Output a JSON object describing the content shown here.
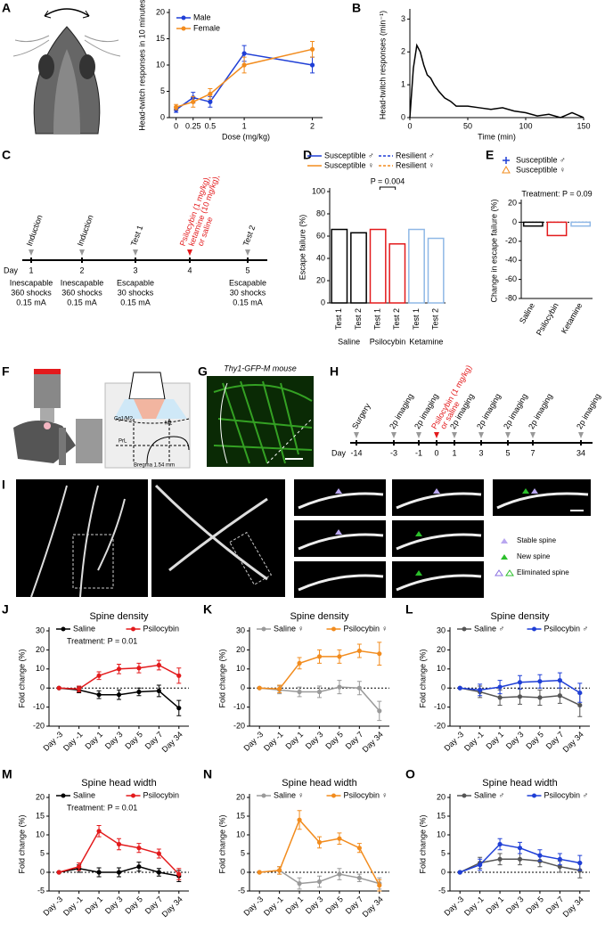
{
  "panel_labels": [
    "A",
    "B",
    "C",
    "D",
    "E",
    "F",
    "G",
    "H",
    "I",
    "J",
    "K",
    "L",
    "M",
    "N",
    "O"
  ],
  "chart_data": [
    {
      "type": "line",
      "ylabel": "Head-twitch responses in 10 minutes",
      "xlabel": "Dose (mg/kg)",
      "x": [
        0,
        0.25,
        0.5,
        1,
        2
      ],
      "xlim": [
        -0.1,
        2.15
      ],
      "xticks": [
        0,
        0.25,
        0.5,
        1,
        2
      ],
      "ylim": [
        0,
        20
      ],
      "yticks": [
        0,
        5,
        10,
        15,
        20
      ],
      "legend": "upper left",
      "series": [
        {
          "name": "Male",
          "color": "#1f3fd6",
          "values": [
            1.5,
            3.8,
            3,
            12.2,
            10
          ],
          "errors": [
            0.5,
            1,
            1,
            1.5,
            1.5
          ]
        },
        {
          "name": "Female",
          "color": "#f28c1e",
          "values": [
            2,
            3,
            4.5,
            10,
            13
          ],
          "errors": [
            0.5,
            1,
            1,
            1.5,
            1.5
          ]
        }
      ]
    },
    {
      "type": "line",
      "ylabel": "Head-twitch responses (min⁻¹)",
      "xlabel": "Time (min)",
      "x": [
        0,
        3,
        6,
        9,
        12,
        15,
        18,
        21,
        25,
        30,
        35,
        40,
        50,
        60,
        70,
        80,
        90,
        100,
        110,
        120,
        130,
        140,
        150
      ],
      "values": [
        0,
        1.5,
        2.2,
        2,
        1.6,
        1.3,
        1.2,
        1,
        0.8,
        0.6,
        0.5,
        0.35,
        0.35,
        0.3,
        0.25,
        0.3,
        0.2,
        0.15,
        0.05,
        0.1,
        0,
        0.15,
        0
      ],
      "color": "#000000",
      "markers": false,
      "xlim": [
        0,
        150
      ],
      "xticks": [
        0,
        50,
        100,
        150
      ],
      "ylim": [
        0,
        3.2
      ],
      "yticks": [
        0,
        1,
        2,
        3
      ]
    },
    {
      "type": "bar",
      "ylabel": "Escape failure (%)",
      "categories": [
        "Test 1",
        "Test 2",
        "Test 1",
        "Test 2",
        "Test 1",
        "Test 2"
      ],
      "groups": [
        "Saline",
        "Psilocybin",
        "Ketamine"
      ],
      "values": [
        66,
        63,
        66,
        53,
        66,
        58
      ],
      "colors": [
        "#000000",
        "#000000",
        "#e31a1c",
        "#e31a1c",
        "#8fb8e6",
        "#8fb8e6"
      ],
      "ylim": [
        0,
        100
      ],
      "yticks": [
        0,
        20,
        40,
        60,
        80,
        100
      ],
      "xlabel_rotate": -90,
      "annotation": "P = 0.004",
      "legend": "above",
      "legend_entries": [
        {
          "name": "Susceptible ♂",
          "color": "#1f3fd6",
          "marker": "line"
        },
        {
          "name": "Resilient ♂",
          "color": "#1f3fd6",
          "marker": "dash"
        },
        {
          "name": "Susceptible ♀",
          "color": "#f28c1e",
          "marker": "line"
        },
        {
          "name": "Resilient ♀",
          "color": "#f28c1e",
          "marker": "dash"
        }
      ]
    },
    {
      "type": "bar",
      "ylabel": "Change in escape failure (%)",
      "categories": [
        "Saline",
        "Psilocybin",
        "Ketamine"
      ],
      "values": [
        -4,
        -14,
        -4
      ],
      "colors": [
        "#000000",
        "#e31a1c",
        "#8fb8e6"
      ],
      "ylim": [
        -80,
        20
      ],
      "yticks": [
        -80,
        -60,
        -40,
        -20,
        0,
        20
      ],
      "xlabel_rotate": -60,
      "zero_line": true,
      "annotation": "Treatment: P = 0.09",
      "legend": "above-column",
      "legend_entries": [
        {
          "name": "Susceptible ♂",
          "color": "#1f3fd6",
          "marker": "plus"
        },
        {
          "name": "Susceptible ♀",
          "color": "#f28c1e",
          "marker": "triangle"
        }
      ]
    },
    {
      "type": "line",
      "title": "Spine density",
      "ylabel": "Fold change (%)",
      "categories": [
        "Day -3",
        "Day -1",
        "Day 1",
        "Day 3",
        "Day 5",
        "Day 7",
        "Day 34"
      ],
      "ylim": [
        -20,
        30
      ],
      "yticks": [
        -20,
        -10,
        0,
        10,
        20,
        30
      ],
      "zero_line": true,
      "legend": "top",
      "annotation": "Treatment: P = 0.01",
      "series": [
        {
          "name": "Saline",
          "color": "#000000",
          "values": [
            0,
            -1,
            -3.5,
            -3.5,
            -2,
            -1.5,
            -10.5
          ],
          "errors": [
            0,
            1.5,
            2,
            2.5,
            2,
            3,
            4
          ]
        },
        {
          "name": "Psilocybin",
          "color": "#e31a1c",
          "values": [
            0,
            -0.5,
            6.5,
            10,
            10.5,
            12,
            6.5
          ],
          "errors": [
            0,
            1.5,
            2,
            2.5,
            2.5,
            2.5,
            4
          ]
        }
      ]
    },
    {
      "type": "line",
      "title": "Spine density",
      "ylabel": "Fold change (%)",
      "categories": [
        "Day -3",
        "Day -1",
        "Day 1",
        "Day 3",
        "Day 5",
        "Day 7",
        "Day 34"
      ],
      "ylim": [
        -20,
        30
      ],
      "yticks": [
        -20,
        -10,
        0,
        10,
        20,
        30
      ],
      "zero_line": true,
      "legend": "top",
      "series": [
        {
          "name": "Saline ♀",
          "color": "#9a9a9a",
          "values": [
            0,
            -1,
            -2,
            -2,
            0.5,
            0,
            -12
          ],
          "errors": [
            0,
            2,
            2.5,
            3,
            3.5,
            3.5,
            5
          ]
        },
        {
          "name": "Psilocybin ♀",
          "color": "#f28c1e",
          "values": [
            0,
            -0.5,
            13,
            16.5,
            16.5,
            19.5,
            18
          ],
          "errors": [
            0,
            2,
            3,
            3.5,
            3.5,
            3.5,
            6
          ]
        }
      ]
    },
    {
      "type": "line",
      "title": "Spine density",
      "ylabel": "Fold change (%)",
      "categories": [
        "Day -3",
        "Day -1",
        "Day 1",
        "Day 3",
        "Day 5",
        "Day 7",
        "Day 34"
      ],
      "ylim": [
        -20,
        30
      ],
      "yticks": [
        -20,
        -10,
        0,
        10,
        20,
        30
      ],
      "zero_line": true,
      "legend": "top",
      "series": [
        {
          "name": "Saline ♂",
          "color": "#555555",
          "values": [
            0,
            -2,
            -5,
            -4.5,
            -5,
            -4,
            -9
          ],
          "errors": [
            0,
            3,
            4,
            4,
            4,
            4,
            6
          ]
        },
        {
          "name": "Psilocybin ♂",
          "color": "#1f3fd6",
          "values": [
            0,
            -1,
            0.5,
            3,
            3.5,
            4,
            -2.5
          ],
          "errors": [
            0,
            3,
            3.5,
            3.5,
            3.5,
            4,
            5
          ]
        }
      ]
    },
    {
      "type": "line",
      "title": "Spine head width",
      "ylabel": "Fold change (%)",
      "categories": [
        "Day -3",
        "Day -1",
        "Day 1",
        "Day 3",
        "Day 5",
        "Day 7",
        "Day 34"
      ],
      "ylim": [
        -5,
        20
      ],
      "yticks": [
        -5,
        0,
        5,
        10,
        15,
        20
      ],
      "zero_line": true,
      "legend": "top",
      "annotation": "Treatment: P = 0.01",
      "series": [
        {
          "name": "Saline",
          "color": "#000000",
          "values": [
            0,
            1,
            0,
            0,
            1.5,
            0,
            -1
          ],
          "errors": [
            0,
            1,
            1.2,
            1.2,
            1.2,
            1,
            1.5
          ]
        },
        {
          "name": "Psilocybin",
          "color": "#e31a1c",
          "values": [
            0,
            1.5,
            11,
            7.5,
            6.5,
            5,
            -0.5
          ],
          "errors": [
            0,
            1,
            1.5,
            1.5,
            1.2,
            1.2,
            1.5
          ]
        }
      ]
    },
    {
      "type": "line",
      "title": "Spine head width",
      "ylabel": "Fold change (%)",
      "categories": [
        "Day -3",
        "Day -1",
        "Day 1",
        "Day 3",
        "Day 5",
        "Day 7",
        "Day 34"
      ],
      "ylim": [
        -5,
        20
      ],
      "yticks": [
        -5,
        0,
        5,
        10,
        15,
        20
      ],
      "zero_line": true,
      "legend": "top",
      "series": [
        {
          "name": "Saline ♀",
          "color": "#9a9a9a",
          "values": [
            0,
            0.5,
            -3,
            -2.5,
            -0.5,
            -1.5,
            -3
          ],
          "errors": [
            0,
            1,
            1.5,
            1.5,
            1.5,
            1,
            1.5
          ]
        },
        {
          "name": "Psilocybin ♀",
          "color": "#f28c1e",
          "values": [
            0,
            0.5,
            14,
            8,
            9,
            6.5,
            -3.5
          ],
          "errors": [
            0,
            1,
            2.5,
            1.5,
            1.5,
            1.2,
            1.5
          ]
        }
      ]
    },
    {
      "type": "line",
      "title": "Spine head width",
      "ylabel": "Fold change (%)",
      "categories": [
        "Day -3",
        "Day -1",
        "Day 1",
        "Day 3",
        "Day 5",
        "Day 7",
        "Day 34"
      ],
      "ylim": [
        -5,
        20
      ],
      "yticks": [
        -5,
        0,
        5,
        10,
        15,
        20
      ],
      "zero_line": true,
      "legend": "top",
      "series": [
        {
          "name": "Saline ♂",
          "color": "#555555",
          "values": [
            0,
            2.5,
            3.5,
            3.5,
            3,
            1.5,
            0.5
          ],
          "errors": [
            0,
            1.5,
            1.5,
            1.5,
            1.5,
            1.5,
            2
          ]
        },
        {
          "name": "Psilocybin ♂",
          "color": "#1f3fd6",
          "values": [
            0,
            2,
            7.5,
            6.5,
            4.5,
            3.5,
            2.5
          ],
          "errors": [
            0,
            1.5,
            1.5,
            1.5,
            1.5,
            1.5,
            2
          ]
        }
      ]
    }
  ],
  "timeline_c": {
    "day_label": "Day",
    "events": [
      {
        "day": "1",
        "above": "Induction",
        "below": [
          "Inescapable",
          "360 shocks",
          "0.15 mA"
        ]
      },
      {
        "day": "2",
        "above": "Induction",
        "below": [
          "Inescapable",
          "360 shocks",
          "0.15 mA"
        ]
      },
      {
        "day": "3",
        "above": "Test 1",
        "below": [
          "Escapable",
          "30 shocks",
          "0.15 mA"
        ]
      },
      {
        "day": "4",
        "above": [
          "Psilocybin (1 mg/kg),",
          "ketamine (10 mg/kg),",
          "or saline"
        ],
        "color": "#e31a1c"
      },
      {
        "day": "5",
        "above": "Test 2",
        "below": [
          "Escapable",
          "30 shocks",
          "0.15 mA"
        ]
      }
    ]
  },
  "timeline_h": {
    "day_label": "Day",
    "events": [
      {
        "day": "-14",
        "above": "Surgery"
      },
      {
        "day": "-3",
        "above": "2p imaging"
      },
      {
        "day": "-1",
        "above": "2p imaging"
      },
      {
        "day": "0",
        "above": [
          "Psilocybin (1 mg/kg)",
          "or saline"
        ],
        "color": "#e31a1c"
      },
      {
        "day": "1",
        "above": "2p imaging"
      },
      {
        "day": "3",
        "above": "2p imaging"
      },
      {
        "day": "5",
        "above": "2p imaging"
      },
      {
        "day": "7",
        "above": "2p imaging"
      },
      {
        "day": "34",
        "above": "2p imaging"
      }
    ]
  },
  "schematic_f": {
    "labels": [
      "Cg1/M2",
      "M1",
      "PrL",
      "Bregma 1.54 mm"
    ]
  },
  "image_g": {
    "title": "Thy1-GFP-M mouse"
  },
  "image_i": {
    "legend": [
      "Stable spine",
      "New spine",
      "Eliminated spine"
    ]
  }
}
